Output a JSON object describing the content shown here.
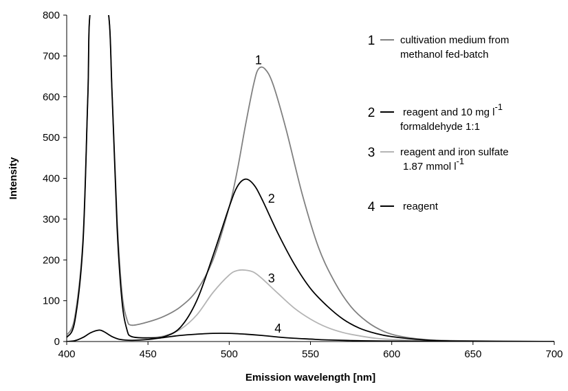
{
  "chart_data": {
    "type": "line",
    "xlabel": "Emission wavelength [nm]",
    "ylabel": "Intensity",
    "xlim": [
      400,
      700
    ],
    "ylim": [
      0,
      800
    ],
    "x_ticks": [
      "400",
      "450",
      "500",
      "550",
      "600",
      "650",
      "700"
    ],
    "y_ticks": [
      "0",
      "100",
      "200",
      "300",
      "400",
      "500",
      "600",
      "700",
      "800"
    ],
    "grid": false,
    "legend_position": "right",
    "series": [
      {
        "id": "1",
        "name": "cultivation medium from methanol fed-batch",
        "legend_lines": [
          "cultivation medium from",
          "methanol fed-batch"
        ],
        "color": "#808080",
        "label_point": [
          518,
          680
        ],
        "points": [
          [
            400,
            15
          ],
          [
            405,
            60
          ],
          [
            410,
            250
          ],
          [
            413,
            600
          ],
          [
            415,
            820
          ],
          [
            425,
            820
          ],
          [
            428,
            600
          ],
          [
            431,
            300
          ],
          [
            434,
            120
          ],
          [
            437,
            55
          ],
          [
            440,
            40
          ],
          [
            450,
            48
          ],
          [
            460,
            62
          ],
          [
            470,
            85
          ],
          [
            480,
            125
          ],
          [
            490,
            200
          ],
          [
            500,
            330
          ],
          [
            505,
            420
          ],
          [
            510,
            530
          ],
          [
            515,
            630
          ],
          [
            518,
            668
          ],
          [
            522,
            668
          ],
          [
            527,
            630
          ],
          [
            535,
            520
          ],
          [
            545,
            360
          ],
          [
            555,
            230
          ],
          [
            565,
            145
          ],
          [
            575,
            85
          ],
          [
            585,
            48
          ],
          [
            595,
            25
          ],
          [
            605,
            13
          ],
          [
            620,
            5
          ],
          [
            640,
            2
          ],
          [
            700,
            0
          ]
        ]
      },
      {
        "id": "2",
        "name": "reagent and 10 mg l-1 formaldehyde 1:1",
        "legend_parts": [
          "reagent and 10 mg l",
          "-1",
          "formaldehyde 1:1"
        ],
        "color": "#000000",
        "label_point": [
          526,
          340
        ],
        "points": [
          [
            400,
            10
          ],
          [
            405,
            50
          ],
          [
            410,
            240
          ],
          [
            413,
            600
          ],
          [
            415,
            820
          ],
          [
            425,
            820
          ],
          [
            428,
            600
          ],
          [
            431,
            280
          ],
          [
            434,
            100
          ],
          [
            437,
            30
          ],
          [
            440,
            12
          ],
          [
            450,
            9
          ],
          [
            460,
            12
          ],
          [
            470,
            35
          ],
          [
            480,
            100
          ],
          [
            490,
            210
          ],
          [
            500,
            330
          ],
          [
            505,
            380
          ],
          [
            510,
            398
          ],
          [
            515,
            385
          ],
          [
            520,
            350
          ],
          [
            530,
            265
          ],
          [
            540,
            190
          ],
          [
            550,
            130
          ],
          [
            560,
            88
          ],
          [
            570,
            55
          ],
          [
            580,
            33
          ],
          [
            590,
            20
          ],
          [
            600,
            12
          ],
          [
            620,
            4
          ],
          [
            640,
            1
          ],
          [
            700,
            0
          ]
        ]
      },
      {
        "id": "3",
        "name": "reagent and iron sulfate 1.87 mmol l-1",
        "legend_parts": [
          "reagent and iron sulfate",
          "1.87 mmol l",
          "-1"
        ],
        "color": "#b4b4b4",
        "label_point": [
          526,
          145
        ],
        "points": [
          [
            450,
            9
          ],
          [
            460,
            14
          ],
          [
            470,
            30
          ],
          [
            480,
            65
          ],
          [
            490,
            120
          ],
          [
            500,
            163
          ],
          [
            505,
            174
          ],
          [
            510,
            175
          ],
          [
            515,
            170
          ],
          [
            520,
            155
          ],
          [
            530,
            118
          ],
          [
            540,
            82
          ],
          [
            550,
            55
          ],
          [
            560,
            35
          ],
          [
            570,
            22
          ],
          [
            580,
            14
          ],
          [
            590,
            8
          ],
          [
            600,
            5
          ],
          [
            620,
            2
          ],
          [
            640,
            1
          ],
          [
            700,
            0
          ]
        ]
      },
      {
        "id": "4",
        "name": "reagent",
        "color": "#000000",
        "label_point": [
          530,
          22
        ],
        "points": [
          [
            400,
            0
          ],
          [
            405,
            2
          ],
          [
            410,
            10
          ],
          [
            415,
            22
          ],
          [
            420,
            28
          ],
          [
            423,
            24
          ],
          [
            428,
            12
          ],
          [
            433,
            5
          ],
          [
            440,
            3
          ],
          [
            450,
            5
          ],
          [
            460,
            10
          ],
          [
            470,
            15
          ],
          [
            480,
            18
          ],
          [
            490,
            20
          ],
          [
            500,
            20
          ],
          [
            510,
            18
          ],
          [
            520,
            15
          ],
          [
            530,
            11
          ],
          [
            540,
            8
          ],
          [
            550,
            6
          ],
          [
            560,
            4
          ],
          [
            580,
            2
          ],
          [
            600,
            1
          ],
          [
            650,
            0
          ],
          [
            700,
            0
          ]
        ]
      }
    ]
  }
}
